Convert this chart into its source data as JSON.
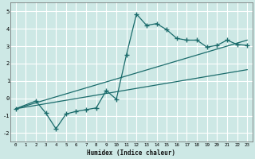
{
  "background_color": "#cde8e5",
  "grid_color": "#ffffff",
  "line_color": "#1a6b6b",
  "curve_x": [
    0,
    2,
    3,
    4,
    5,
    6,
    7,
    8,
    9,
    10,
    11,
    12,
    13,
    14,
    15,
    16,
    17,
    18,
    19,
    20,
    21,
    22,
    23
  ],
  "curve_y": [
    -0.6,
    -0.15,
    -0.85,
    -1.75,
    -0.9,
    -0.75,
    -0.65,
    -0.55,
    0.45,
    -0.05,
    2.5,
    4.85,
    4.2,
    4.3,
    3.95,
    3.45,
    3.35,
    3.35,
    2.95,
    3.05,
    3.35,
    3.1,
    3.05
  ],
  "line1_x": [
    0,
    23
  ],
  "line1_y": [
    -0.6,
    3.35
  ],
  "line2_x": [
    0,
    23
  ],
  "line2_y": [
    -0.6,
    1.65
  ],
  "xlim": [
    -0.5,
    23.5
  ],
  "ylim": [
    -2.5,
    5.5
  ],
  "xlabel": "Humidex (Indice chaleur)",
  "xticks": [
    0,
    1,
    2,
    3,
    4,
    5,
    6,
    7,
    8,
    9,
    10,
    11,
    12,
    13,
    14,
    15,
    16,
    17,
    18,
    19,
    20,
    21,
    22,
    23
  ],
  "yticks": [
    -2,
    -1,
    0,
    1,
    2,
    3,
    4,
    5
  ]
}
